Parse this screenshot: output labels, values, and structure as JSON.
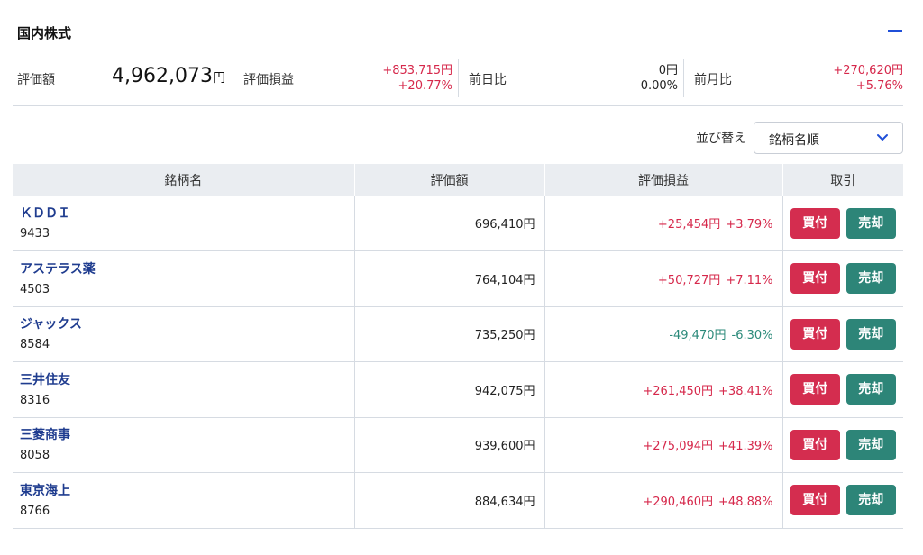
{
  "section": {
    "title": "国内株式"
  },
  "summary": {
    "valuation_label": "評価額",
    "valuation_value": "4,962,073",
    "valuation_unit": "円",
    "pl_label": "評価損益",
    "pl_amount": "+853,715円",
    "pl_pct": "+20.77%",
    "day_label": "前日比",
    "day_amount": "0円",
    "day_pct": "0.00%",
    "month_label": "前月比",
    "month_amount": "+270,620円",
    "month_pct": "+5.76%"
  },
  "sort": {
    "label": "並び替え",
    "selected": "銘柄名順"
  },
  "table": {
    "headers": [
      "銘柄名",
      "評価額",
      "評価損益",
      "取引"
    ],
    "buy_label": "買付",
    "sell_label": "売却",
    "rows": [
      {
        "name": "ＫＤＤＩ",
        "code": "9433",
        "value": "696,410円",
        "pl": "+25,454円",
        "pl_pct": "+3.79%",
        "trend": "pos"
      },
      {
        "name": "アステラス薬",
        "code": "4503",
        "value": "764,104円",
        "pl": "+50,727円",
        "pl_pct": "+7.11%",
        "trend": "pos"
      },
      {
        "name": "ジャックス",
        "code": "8584",
        "value": "735,250円",
        "pl": "-49,470円",
        "pl_pct": "-6.30%",
        "trend": "neg"
      },
      {
        "name": "三井住友",
        "code": "8316",
        "value": "942,075円",
        "pl": "+261,450円",
        "pl_pct": "+38.41%",
        "trend": "pos"
      },
      {
        "name": "三菱商事",
        "code": "8058",
        "value": "939,600円",
        "pl": "+275,094円",
        "pl_pct": "+41.39%",
        "trend": "pos"
      },
      {
        "name": "東京海上",
        "code": "8766",
        "value": "884,634円",
        "pl": "+290,460円",
        "pl_pct": "+48.88%",
        "trend": "pos"
      }
    ]
  },
  "colors": {
    "positive": "#d6284b",
    "negative": "#2b8a7a",
    "buy": "#d42d4f",
    "sell": "#2d8578",
    "accent": "#1f4fd8"
  },
  "icons": {
    "collapse": "minus-icon",
    "select": "chevron-down-icon"
  }
}
